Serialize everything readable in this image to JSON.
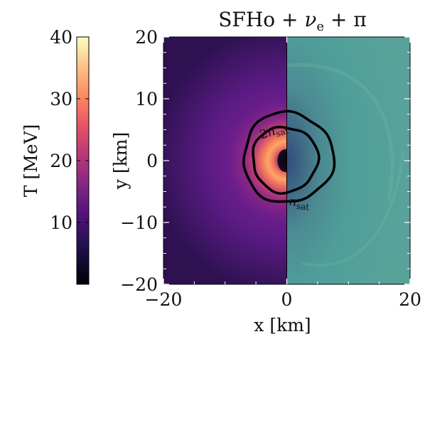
{
  "chart_data": {
    "type": "heatmap",
    "title": "SFHo + ν_e + π",
    "title_parts": {
      "base": "SFHo + ",
      "nu": "ν",
      "nu_sub": "e",
      "tail": " + π"
    },
    "xlabel": "x [km]",
    "ylabel": "y [km]",
    "xlim": [
      -20,
      20
    ],
    "ylim": [
      -20,
      20
    ],
    "x_ticks": [
      -20,
      0,
      20
    ],
    "y_ticks": [
      -20,
      -10,
      0,
      10,
      20
    ],
    "x_tick_labels": [
      "−20",
      "0",
      "20"
    ],
    "y_tick_labels": [
      "−20",
      "−10",
      "0",
      "10",
      "20"
    ],
    "colorbar": {
      "label": "T [MeV]",
      "range": [
        0,
        40
      ],
      "ticks": [
        10,
        20,
        30,
        40
      ],
      "tick_labels": [
        "10",
        "20",
        "30",
        "40"
      ],
      "colormap": "magma"
    },
    "left_half": {
      "x_range": [
        -20,
        0
      ],
      "quantity": "T [MeV]",
      "colormap": "magma"
    },
    "right_half": {
      "x_range": [
        0,
        20
      ],
      "colormap": "teal",
      "color": "#4f9e9a"
    },
    "contours": [
      {
        "label": "2n_sat",
        "label_text": {
          "base": "2",
          "n": "n",
          "sub": "sat"
        },
        "center": [
          -0.3,
          0.2
        ],
        "radius_km": 5.3
      },
      {
        "label": "n_sat",
        "label_text": {
          "n": "n",
          "sub": "sat"
        },
        "center": [
          0.2,
          0.5
        ],
        "radius_km": 7.3
      }
    ]
  }
}
